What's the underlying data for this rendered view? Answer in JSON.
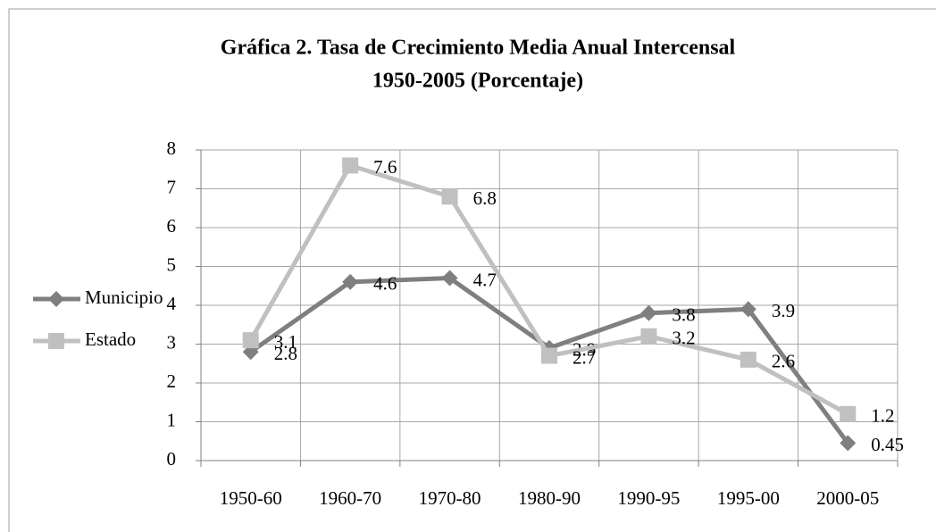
{
  "chart_data": {
    "type": "line",
    "title": [
      "Gráfica 2. Tasa de Crecimiento Media Anual Intercensal",
      "1950-2005 (Porcentaje)"
    ],
    "categories": [
      "1950-60",
      "1960-70",
      "1970-80",
      "1980-90",
      "1990-95",
      "1995-00",
      "2000-05"
    ],
    "series": [
      {
        "name": "Municipio",
        "color": "#7f7f7f",
        "marker": "diamond",
        "values": [
          2.8,
          4.6,
          4.7,
          2.9,
          3.8,
          3.9,
          0.45
        ]
      },
      {
        "name": "Estado",
        "color": "#c0c0c0",
        "marker": "square",
        "values": [
          3.1,
          7.6,
          6.8,
          2.7,
          3.2,
          2.6,
          1.2
        ]
      }
    ],
    "ylim": [
      0,
      8
    ],
    "yticks": [
      0,
      1,
      2,
      3,
      4,
      5,
      6,
      7,
      8
    ],
    "grid": true,
    "legend": "left"
  }
}
